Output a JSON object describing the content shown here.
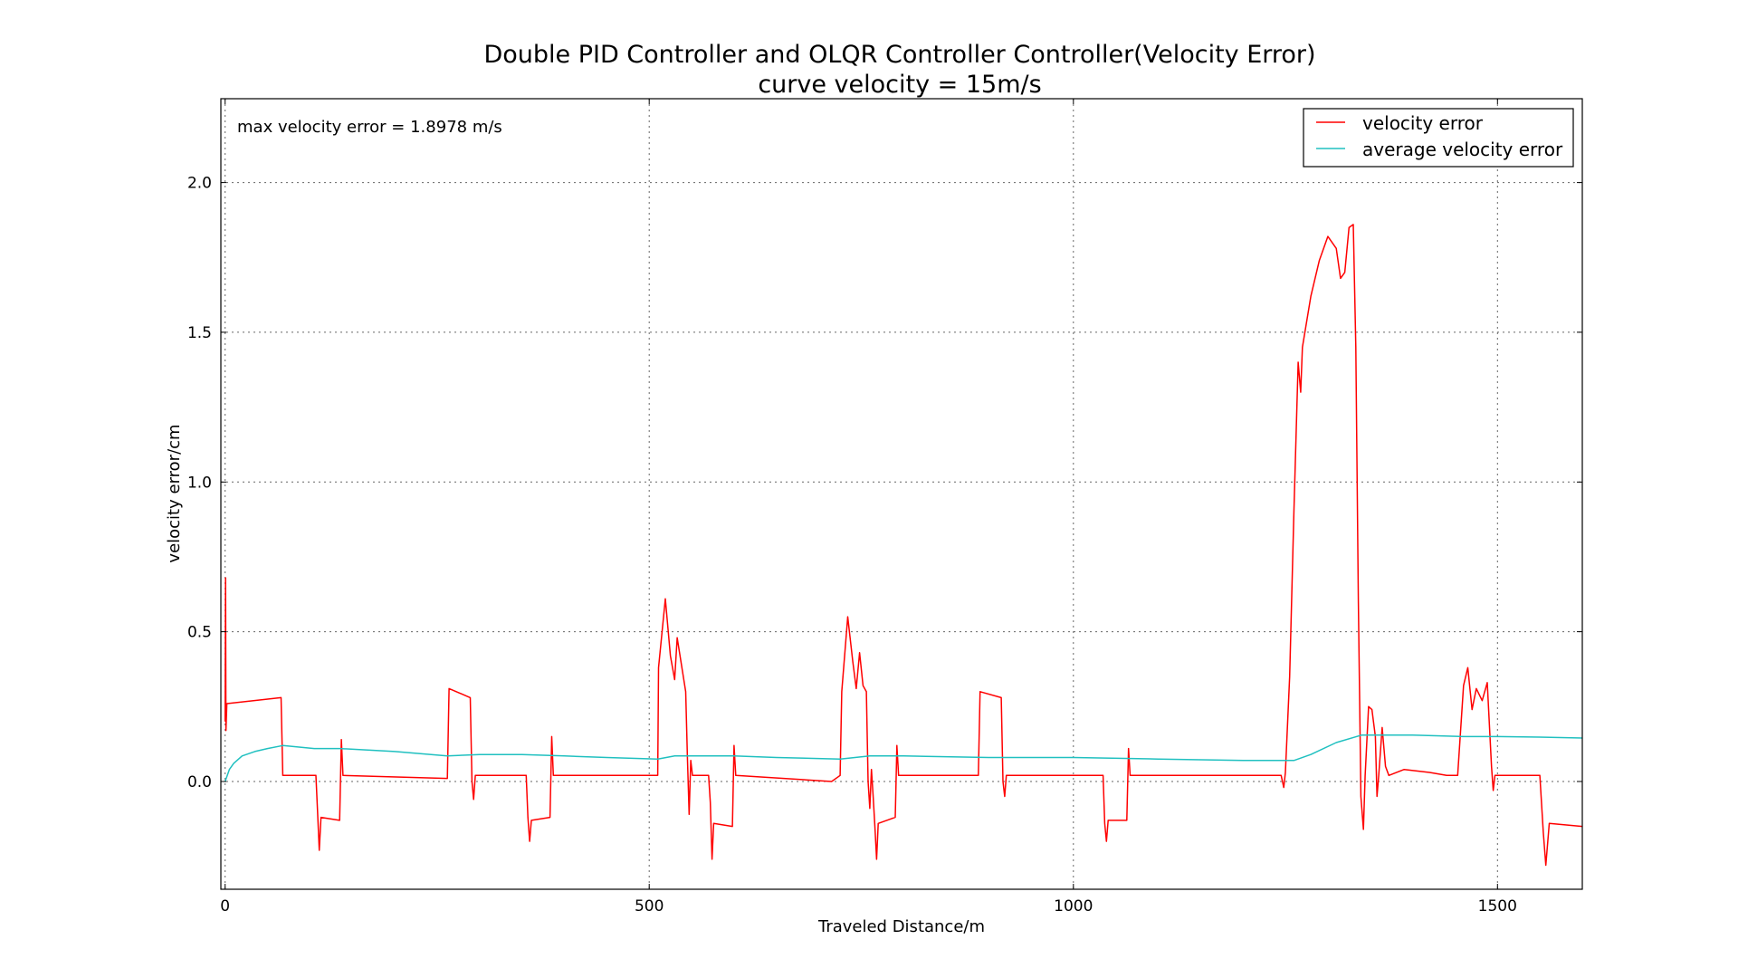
{
  "chart_data": {
    "type": "line",
    "title": "Double PID Controller and OLQR Controller Controller(Velocity Error)",
    "subtitle": "curve velocity = 15m/s",
    "xlabel": "Traveled Distance/m",
    "ylabel": "velocity error/cm",
    "xlim": [
      -5,
      1600
    ],
    "ylim": [
      -0.36,
      2.28
    ],
    "xticks": [
      0,
      500,
      1000,
      1500
    ],
    "xtick_labels": [
      "0",
      "500",
      "1000",
      "1500"
    ],
    "yticks": [
      0.0,
      0.5,
      1.0,
      1.5,
      2.0
    ],
    "ytick_labels": [
      "0.0",
      "0.5",
      "1.0",
      "1.5",
      "2.0"
    ],
    "grid": true,
    "legend_position": "top-right",
    "annotation": "max velocity error = 1.8978 m/s",
    "colors": {
      "velocity_error": "#ff0000",
      "average_velocity_error": "#20c0c0"
    },
    "series": [
      {
        "name": "velocity error",
        "color": "#ff0000",
        "points": [
          [
            0,
            0.2
          ],
          [
            0.5,
            0.68
          ],
          [
            1.0,
            0.17
          ],
          [
            2,
            0.26
          ],
          [
            66,
            0.28
          ],
          [
            68,
            0.02
          ],
          [
            107,
            0.02
          ],
          [
            109,
            -0.1
          ],
          [
            111,
            -0.23
          ],
          [
            113,
            -0.12
          ],
          [
            135,
            -0.13
          ],
          [
            137,
            0.14
          ],
          [
            139,
            0.02
          ],
          [
            262,
            0.01
          ],
          [
            264,
            0.31
          ],
          [
            289,
            0.28
          ],
          [
            291,
            0.0
          ],
          [
            293,
            -0.06
          ],
          [
            295,
            0.02
          ],
          [
            355,
            0.02
          ],
          [
            357,
            -0.12
          ],
          [
            359,
            -0.2
          ],
          [
            361,
            -0.13
          ],
          [
            383,
            -0.12
          ],
          [
            385,
            0.15
          ],
          [
            387,
            0.02
          ],
          [
            510,
            0.02
          ],
          [
            511,
            0.38
          ],
          [
            519,
            0.61
          ],
          [
            525,
            0.42
          ],
          [
            530,
            0.34
          ],
          [
            533,
            0.48
          ],
          [
            543,
            0.3
          ],
          [
            545,
            0.08
          ],
          [
            547,
            -0.11
          ],
          [
            549,
            0.07
          ],
          [
            551,
            0.02
          ],
          [
            570,
            0.02
          ],
          [
            572,
            -0.07
          ],
          [
            574,
            -0.26
          ],
          [
            576,
            -0.14
          ],
          [
            598,
            -0.15
          ],
          [
            600,
            0.12
          ],
          [
            602,
            0.02
          ],
          [
            715,
            0.0
          ],
          [
            725,
            0.02
          ],
          [
            727,
            0.3
          ],
          [
            734,
            0.55
          ],
          [
            740,
            0.4
          ],
          [
            744,
            0.31
          ],
          [
            748,
            0.43
          ],
          [
            752,
            0.32
          ],
          [
            756,
            0.3
          ],
          [
            758,
            0.0
          ],
          [
            760,
            -0.09
          ],
          [
            762,
            0.04
          ],
          [
            764,
            -0.05
          ],
          [
            766,
            -0.15
          ],
          [
            768,
            -0.26
          ],
          [
            770,
            -0.14
          ],
          [
            790,
            -0.12
          ],
          [
            792,
            0.12
          ],
          [
            794,
            0.02
          ],
          [
            888,
            0.02
          ],
          [
            890,
            0.3
          ],
          [
            915,
            0.28
          ],
          [
            917,
            0.0
          ],
          [
            919,
            -0.05
          ],
          [
            921,
            0.02
          ],
          [
            1035,
            0.02
          ],
          [
            1037,
            -0.14
          ],
          [
            1039,
            -0.2
          ],
          [
            1041,
            -0.13
          ],
          [
            1063,
            -0.13
          ],
          [
            1065,
            0.11
          ],
          [
            1067,
            0.02
          ],
          [
            1245,
            0.02
          ],
          [
            1248,
            -0.02
          ],
          [
            1250,
            0.03
          ],
          [
            1255,
            0.35
          ],
          [
            1260,
            0.9
          ],
          [
            1265,
            1.4
          ],
          [
            1268,
            1.3
          ],
          [
            1270,
            1.45
          ],
          [
            1280,
            1.62
          ],
          [
            1290,
            1.74
          ],
          [
            1300,
            1.82
          ],
          [
            1310,
            1.78
          ],
          [
            1315,
            1.68
          ],
          [
            1320,
            1.7
          ],
          [
            1325,
            1.85
          ],
          [
            1330,
            1.86
          ],
          [
            1333,
            1.45
          ],
          [
            1336,
            0.6
          ],
          [
            1339,
            -0.05
          ],
          [
            1342,
            -0.16
          ],
          [
            1344,
            0.02
          ],
          [
            1348,
            0.25
          ],
          [
            1352,
            0.24
          ],
          [
            1356,
            0.15
          ],
          [
            1358,
            -0.05
          ],
          [
            1360,
            0.02
          ],
          [
            1364,
            0.18
          ],
          [
            1368,
            0.05
          ],
          [
            1372,
            0.02
          ],
          [
            1390,
            0.04
          ],
          [
            1420,
            0.03
          ],
          [
            1440,
            0.02
          ],
          [
            1453,
            0.02
          ],
          [
            1460,
            0.32
          ],
          [
            1465,
            0.38
          ],
          [
            1470,
            0.24
          ],
          [
            1475,
            0.31
          ],
          [
            1482,
            0.27
          ],
          [
            1488,
            0.33
          ],
          [
            1493,
            0.05
          ],
          [
            1495,
            -0.03
          ],
          [
            1497,
            0.02
          ],
          [
            1550,
            0.02
          ],
          [
            1554,
            -0.17
          ],
          [
            1557,
            -0.28
          ],
          [
            1561,
            -0.14
          ],
          [
            1600,
            -0.15
          ]
        ]
      },
      {
        "name": "average velocity error",
        "color": "#20c0c0",
        "points": [
          [
            0,
            0.0
          ],
          [
            5,
            0.04
          ],
          [
            10,
            0.06
          ],
          [
            20,
            0.085
          ],
          [
            35,
            0.1
          ],
          [
            50,
            0.11
          ],
          [
            68,
            0.12
          ],
          [
            105,
            0.11
          ],
          [
            135,
            0.11
          ],
          [
            200,
            0.1
          ],
          [
            262,
            0.085
          ],
          [
            300,
            0.09
          ],
          [
            350,
            0.09
          ],
          [
            400,
            0.085
          ],
          [
            450,
            0.08
          ],
          [
            510,
            0.075
          ],
          [
            530,
            0.085
          ],
          [
            560,
            0.085
          ],
          [
            600,
            0.085
          ],
          [
            650,
            0.08
          ],
          [
            725,
            0.075
          ],
          [
            760,
            0.085
          ],
          [
            800,
            0.085
          ],
          [
            900,
            0.08
          ],
          [
            1000,
            0.08
          ],
          [
            1100,
            0.075
          ],
          [
            1200,
            0.07
          ],
          [
            1260,
            0.07
          ],
          [
            1280,
            0.09
          ],
          [
            1310,
            0.13
          ],
          [
            1340,
            0.155
          ],
          [
            1400,
            0.155
          ],
          [
            1460,
            0.15
          ],
          [
            1500,
            0.15
          ],
          [
            1550,
            0.148
          ],
          [
            1600,
            0.145
          ]
        ]
      }
    ]
  }
}
